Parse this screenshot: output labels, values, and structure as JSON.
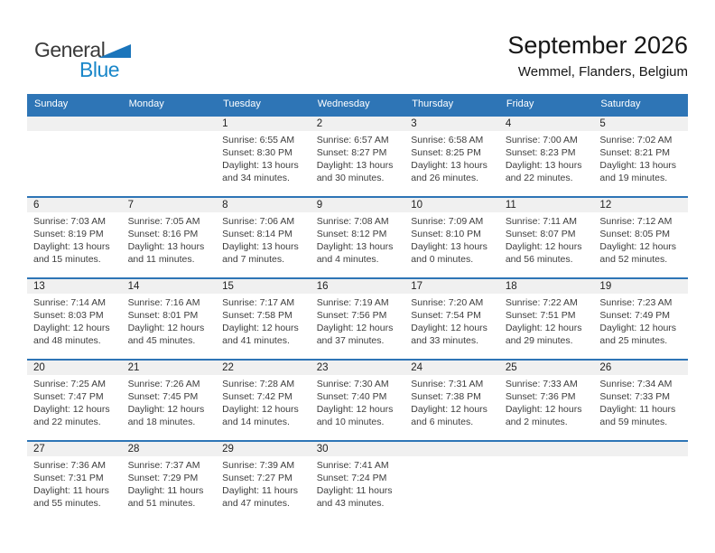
{
  "logo": {
    "part1": "General",
    "part2": "Blue"
  },
  "header": {
    "title": "September 2026",
    "subtitle": "Wemmel, Flanders, Belgium"
  },
  "colors": {
    "header_bg": "#2e75b6",
    "week_border": "#2e75b6",
    "number_band_bg": "#f0f0f0",
    "weekday_text": "#ffffff",
    "logo_blue": "#1a87c9",
    "logo_triangle": "#1b75bb",
    "logo_dark": "#3a3a3a"
  },
  "weekdays": [
    "Sunday",
    "Monday",
    "Tuesday",
    "Wednesday",
    "Thursday",
    "Friday",
    "Saturday"
  ],
  "weeks": [
    [
      null,
      null,
      {
        "day": "1",
        "sunrise": "Sunrise: 6:55 AM",
        "sunset": "Sunset: 8:30 PM",
        "daylight": "Daylight: 13 hours and 34 minutes."
      },
      {
        "day": "2",
        "sunrise": "Sunrise: 6:57 AM",
        "sunset": "Sunset: 8:27 PM",
        "daylight": "Daylight: 13 hours and 30 minutes."
      },
      {
        "day": "3",
        "sunrise": "Sunrise: 6:58 AM",
        "sunset": "Sunset: 8:25 PM",
        "daylight": "Daylight: 13 hours and 26 minutes."
      },
      {
        "day": "4",
        "sunrise": "Sunrise: 7:00 AM",
        "sunset": "Sunset: 8:23 PM",
        "daylight": "Daylight: 13 hours and 22 minutes."
      },
      {
        "day": "5",
        "sunrise": "Sunrise: 7:02 AM",
        "sunset": "Sunset: 8:21 PM",
        "daylight": "Daylight: 13 hours and 19 minutes."
      }
    ],
    [
      {
        "day": "6",
        "sunrise": "Sunrise: 7:03 AM",
        "sunset": "Sunset: 8:19 PM",
        "daylight": "Daylight: 13 hours and 15 minutes."
      },
      {
        "day": "7",
        "sunrise": "Sunrise: 7:05 AM",
        "sunset": "Sunset: 8:16 PM",
        "daylight": "Daylight: 13 hours and 11 minutes."
      },
      {
        "day": "8",
        "sunrise": "Sunrise: 7:06 AM",
        "sunset": "Sunset: 8:14 PM",
        "daylight": "Daylight: 13 hours and 7 minutes."
      },
      {
        "day": "9",
        "sunrise": "Sunrise: 7:08 AM",
        "sunset": "Sunset: 8:12 PM",
        "daylight": "Daylight: 13 hours and 4 minutes."
      },
      {
        "day": "10",
        "sunrise": "Sunrise: 7:09 AM",
        "sunset": "Sunset: 8:10 PM",
        "daylight": "Daylight: 13 hours and 0 minutes."
      },
      {
        "day": "11",
        "sunrise": "Sunrise: 7:11 AM",
        "sunset": "Sunset: 8:07 PM",
        "daylight": "Daylight: 12 hours and 56 minutes."
      },
      {
        "day": "12",
        "sunrise": "Sunrise: 7:12 AM",
        "sunset": "Sunset: 8:05 PM",
        "daylight": "Daylight: 12 hours and 52 minutes."
      }
    ],
    [
      {
        "day": "13",
        "sunrise": "Sunrise: 7:14 AM",
        "sunset": "Sunset: 8:03 PM",
        "daylight": "Daylight: 12 hours and 48 minutes."
      },
      {
        "day": "14",
        "sunrise": "Sunrise: 7:16 AM",
        "sunset": "Sunset: 8:01 PM",
        "daylight": "Daylight: 12 hours and 45 minutes."
      },
      {
        "day": "15",
        "sunrise": "Sunrise: 7:17 AM",
        "sunset": "Sunset: 7:58 PM",
        "daylight": "Daylight: 12 hours and 41 minutes."
      },
      {
        "day": "16",
        "sunrise": "Sunrise: 7:19 AM",
        "sunset": "Sunset: 7:56 PM",
        "daylight": "Daylight: 12 hours and 37 minutes."
      },
      {
        "day": "17",
        "sunrise": "Sunrise: 7:20 AM",
        "sunset": "Sunset: 7:54 PM",
        "daylight": "Daylight: 12 hours and 33 minutes."
      },
      {
        "day": "18",
        "sunrise": "Sunrise: 7:22 AM",
        "sunset": "Sunset: 7:51 PM",
        "daylight": "Daylight: 12 hours and 29 minutes."
      },
      {
        "day": "19",
        "sunrise": "Sunrise: 7:23 AM",
        "sunset": "Sunset: 7:49 PM",
        "daylight": "Daylight: 12 hours and 25 minutes."
      }
    ],
    [
      {
        "day": "20",
        "sunrise": "Sunrise: 7:25 AM",
        "sunset": "Sunset: 7:47 PM",
        "daylight": "Daylight: 12 hours and 22 minutes."
      },
      {
        "day": "21",
        "sunrise": "Sunrise: 7:26 AM",
        "sunset": "Sunset: 7:45 PM",
        "daylight": "Daylight: 12 hours and 18 minutes."
      },
      {
        "day": "22",
        "sunrise": "Sunrise: 7:28 AM",
        "sunset": "Sunset: 7:42 PM",
        "daylight": "Daylight: 12 hours and 14 minutes."
      },
      {
        "day": "23",
        "sunrise": "Sunrise: 7:30 AM",
        "sunset": "Sunset: 7:40 PM",
        "daylight": "Daylight: 12 hours and 10 minutes."
      },
      {
        "day": "24",
        "sunrise": "Sunrise: 7:31 AM",
        "sunset": "Sunset: 7:38 PM",
        "daylight": "Daylight: 12 hours and 6 minutes."
      },
      {
        "day": "25",
        "sunrise": "Sunrise: 7:33 AM",
        "sunset": "Sunset: 7:36 PM",
        "daylight": "Daylight: 12 hours and 2 minutes."
      },
      {
        "day": "26",
        "sunrise": "Sunrise: 7:34 AM",
        "sunset": "Sunset: 7:33 PM",
        "daylight": "Daylight: 11 hours and 59 minutes."
      }
    ],
    [
      {
        "day": "27",
        "sunrise": "Sunrise: 7:36 AM",
        "sunset": "Sunset: 7:31 PM",
        "daylight": "Daylight: 11 hours and 55 minutes."
      },
      {
        "day": "28",
        "sunrise": "Sunrise: 7:37 AM",
        "sunset": "Sunset: 7:29 PM",
        "daylight": "Daylight: 11 hours and 51 minutes."
      },
      {
        "day": "29",
        "sunrise": "Sunrise: 7:39 AM",
        "sunset": "Sunset: 7:27 PM",
        "daylight": "Daylight: 11 hours and 47 minutes."
      },
      {
        "day": "30",
        "sunrise": "Sunrise: 7:41 AM",
        "sunset": "Sunset: 7:24 PM",
        "daylight": "Daylight: 11 hours and 43 minutes."
      },
      null,
      null,
      null
    ]
  ]
}
